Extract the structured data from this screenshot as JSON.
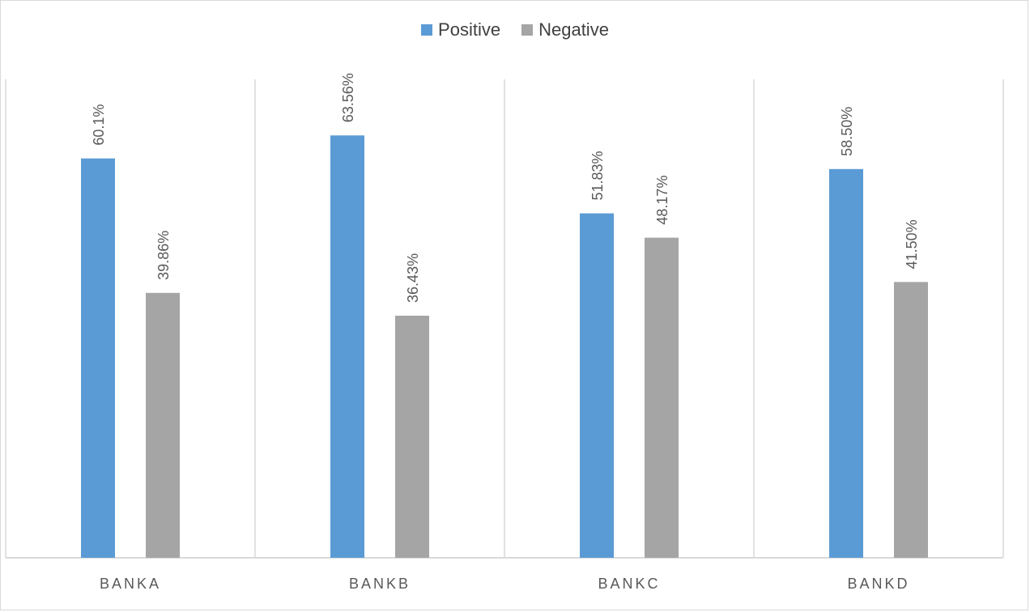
{
  "chart_data": {
    "type": "bar",
    "categories": [
      "BANKA",
      "BANKB",
      "BANKC",
      "BANKD"
    ],
    "series": [
      {
        "name": "Positive",
        "color": "#5b9bd5",
        "values": [
          60.1,
          63.56,
          51.83,
          58.5
        ],
        "labels": [
          "60.1%",
          "63.56%",
          "51.83%",
          "58.50%"
        ]
      },
      {
        "name": "Negative",
        "color": "#a5a5a5",
        "values": [
          39.86,
          36.43,
          48.17,
          41.5
        ],
        "labels": [
          "39.86%",
          "36.43%",
          "48.17%",
          "41.50%"
        ]
      }
    ],
    "ylim": [
      0,
      72
    ],
    "legend_position": "top",
    "grid": "vertical category separators",
    "title": "",
    "xlabel": "",
    "ylabel": ""
  }
}
